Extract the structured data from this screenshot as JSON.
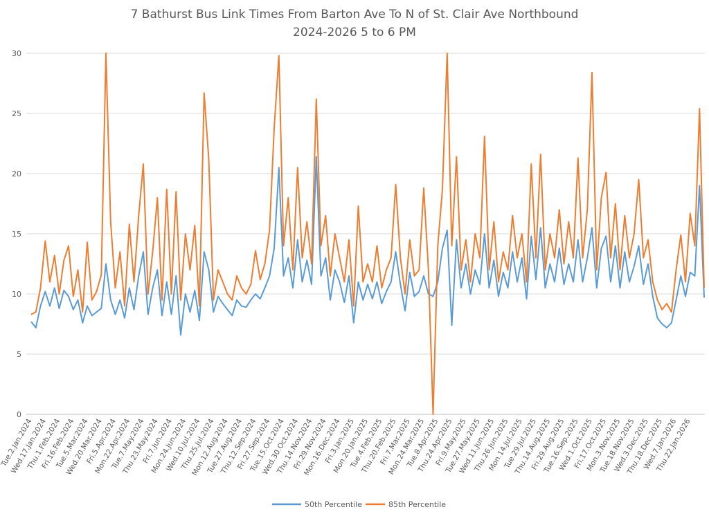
{
  "chart_data": {
    "type": "line",
    "title": "7 Bathurst Bus Link Times From Barton Ave To N of St. Clair Ave Northbound",
    "subtitle": "2024-2026 5 to 6 PM",
    "xlabel": "",
    "ylabel": "",
    "ylim": [
      0,
      30
    ],
    "yticks": [
      0,
      5,
      10,
      15,
      20,
      25,
      30
    ],
    "grid": true,
    "legend_position": "bottom",
    "colors": {
      "p50": "#5b9bd5",
      "p85": "#ed7d31"
    },
    "x_tick_labels": [
      "Tue.2.Jan.2024",
      "Wed.17.Jan.2024",
      "Thu.1.Feb.2024",
      "Fri.16.Feb.2024",
      "Tue.5.Mar.2024",
      "Wed.20.Mar.2024",
      "Fri.5.Apr.2024",
      "Mon.22.Apr.2024",
      "Tue.7.May.2024",
      "Thu.23.May.2024",
      "Fri.7.Jun.2024",
      "Mon.24.Jun.2024",
      "Wed.10.Jul.2024",
      "Thu.25.Jul.2024",
      "Mon.12.Aug.2024",
      "Tue.27.Aug.2024",
      "Thu.12.Sep.2024",
      "Fri.27.Sep.2024",
      "Tue.15.Oct.2024",
      "Wed.30.Oct.2024",
      "Thu.14.Nov.2024",
      "Fri.29.Nov.2024",
      "Mon.16.Dec.2024",
      "Fri.3.Jan.2025",
      "Mon.20.Jan.2025",
      "Tue.4.Feb.2025",
      "Thu.20.Feb.2025",
      "Fri.7.Mar.2025",
      "Mon.24.Mar.2025",
      "Tue.8.Apr.2025",
      "Thu.24.Apr.2025",
      "Fri.9.May.2025",
      "Tue.27.May.2025",
      "Wed.11.Jun.2025",
      "Thu.26.Jun.2025",
      "Mon.14.Jul.2025",
      "Tue.29.Jul.2025",
      "Thu.14.Aug.2025",
      "Fri.29.Aug.2025",
      "Tue.16.Sep.2025",
      "Wed.1.Oct.2025",
      "Fri.17.Oct.2025",
      "Mon.3.Nov.2025",
      "Tue.18.Nov.2025",
      "Wed.3.Dec.2025",
      "Thu.18.Dec.2025",
      "Wed.7.Jan.2026",
      "Thu.22.Jan.2026"
    ],
    "series": [
      {
        "name": "50th Percentile",
        "key": "p50",
        "values": [
          7.7,
          7.2,
          9,
          10.2,
          9,
          10.5,
          8.8,
          10.3,
          9.8,
          8.7,
          9.5,
          7.6,
          9,
          8.2,
          8.5,
          8.8,
          12.5,
          9.5,
          8.3,
          9.5,
          8,
          10.5,
          8.7,
          11.5,
          13.5,
          8.3,
          10.5,
          12,
          8.2,
          11,
          8.3,
          11.5,
          6.6,
          10,
          8.5,
          10.3,
          7.8,
          13.5,
          12,
          8.5,
          9.8,
          9.2,
          8.7,
          8.2,
          9.5,
          9,
          8.9,
          9.5,
          10,
          9.6,
          10.5,
          11.5,
          13.8,
          20.5,
          11.5,
          13,
          10.5,
          14.5,
          11,
          12.8,
          10.8,
          21.4,
          11.5,
          13,
          9.5,
          12,
          11,
          9.3,
          11.5,
          7.6,
          11,
          9.5,
          10.8,
          9.6,
          11,
          9.2,
          10.2,
          11,
          13.5,
          10.8,
          8.6,
          11.8,
          9.8,
          10.2,
          11.5,
          10,
          9.8,
          11,
          13.8,
          15.3,
          7.4,
          14.5,
          10.5,
          12.5,
          10,
          12,
          10.8,
          15,
          10.5,
          12.8,
          9.8,
          11.8,
          10.5,
          13.5,
          11,
          13,
          9.6,
          14.8,
          11.2,
          15.5,
          10.5,
          12.5,
          11,
          13.8,
          10.8,
          12.5,
          11,
          14.5,
          11,
          13,
          15.5,
          10.5,
          13.8,
          14.8,
          11,
          14,
          10.5,
          13.5,
          11,
          12.3,
          14,
          10.8,
          12.5,
          9.8,
          8,
          7.5,
          7.2,
          7.6,
          9.5,
          11.5,
          9.8,
          11.8,
          11.5,
          19,
          9.7
        ]
      },
      {
        "name": "85th Percentile",
        "key": "p85",
        "values": [
          8.3,
          8.5,
          10.5,
          14.4,
          11,
          13.2,
          10,
          12.8,
          14,
          9.8,
          12,
          8.5,
          14.3,
          9.5,
          10.2,
          11.6,
          30,
          16,
          10.5,
          13.5,
          9,
          15.8,
          11,
          16.5,
          20.8,
          10,
          13.5,
          18,
          9.5,
          18.7,
          10,
          18.5,
          9.5,
          15,
          12,
          15.7,
          9,
          26.7,
          21.2,
          9.5,
          12,
          11,
          10,
          9.5,
          11.5,
          10.5,
          10,
          10.8,
          13.6,
          11.2,
          12.5,
          15.3,
          23.8,
          29.8,
          14,
          18,
          12,
          20.5,
          13,
          16,
          12.5,
          26.2,
          14,
          16.5,
          11.5,
          15,
          13,
          11,
          14.5,
          9,
          17.3,
          11,
          12.5,
          11,
          14,
          10.5,
          12,
          13,
          19.1,
          13,
          10,
          14.5,
          11.5,
          12,
          18.8,
          12,
          0,
          14,
          18.7,
          30,
          14,
          21.4,
          12,
          14.5,
          11,
          15,
          13,
          23.1,
          12,
          16,
          11,
          13.5,
          12,
          16.5,
          13,
          15,
          11,
          20.8,
          13,
          21.6,
          12,
          15,
          13,
          17,
          12.5,
          16,
          13,
          21.3,
          13,
          17,
          28.4,
          12,
          18,
          20.1,
          13,
          17.5,
          12,
          16.5,
          13,
          15,
          19.5,
          13,
          14.5,
          11,
          9.5,
          8.7,
          9.2,
          8.5,
          12,
          14.9,
          11,
          16.7,
          14,
          25.4,
          10.5
        ]
      }
    ]
  }
}
